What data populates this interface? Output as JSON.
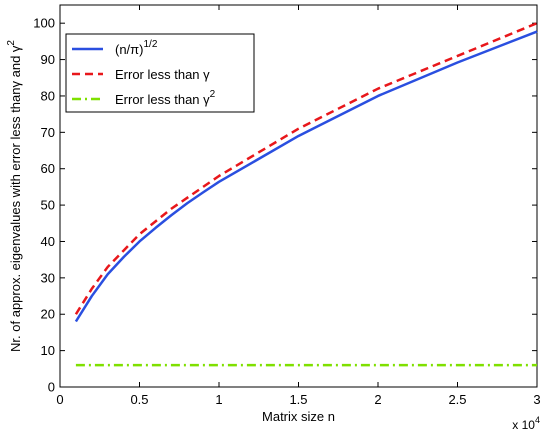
{
  "chart_data": {
    "type": "line",
    "xlabel": "Matrix size n",
    "ylabel": "Nr. of approx. eigenvalues with error less thanγ and γ",
    "ylabel_superscript": "2",
    "x_multiplier_label": "x 10",
    "x_multiplier_exponent": "4",
    "xlim": [
      0,
      30000
    ],
    "ylim": [
      0,
      105
    ],
    "x_ticks": [
      0,
      5000,
      10000,
      15000,
      20000,
      25000,
      30000
    ],
    "x_tick_labels": [
      "0",
      "0.5",
      "1",
      "1.5",
      "2",
      "2.5",
      "3"
    ],
    "y_ticks": [
      0,
      10,
      20,
      30,
      40,
      50,
      60,
      70,
      80,
      90,
      100
    ],
    "y_tick_labels": [
      "0",
      "10",
      "20",
      "30",
      "40",
      "50",
      "60",
      "70",
      "80",
      "90",
      "100"
    ],
    "grid": false,
    "legend_position": "top-left",
    "series": [
      {
        "legend_label": "(n/π)",
        "legend_superscript": "1/2",
        "color": "#2a4fe0",
        "dash": "solid",
        "x": [
          1000,
          2000,
          3000,
          4000,
          5000,
          6000,
          7000,
          8000,
          9000,
          10000,
          15000,
          20000,
          25000,
          30000
        ],
        "y": [
          18,
          25,
          31,
          35.7,
          40,
          43.7,
          47.2,
          50.5,
          53.5,
          56.4,
          69,
          80,
          89.2,
          97.7
        ]
      },
      {
        "legend_label": "Error less than γ",
        "color": "#e8171b",
        "dash": "dashed",
        "x": [
          1000,
          2000,
          3000,
          4000,
          5000,
          6000,
          7000,
          8000,
          9000,
          10000,
          15000,
          20000,
          25000,
          30000
        ],
        "y": [
          20,
          27,
          33,
          37.5,
          42,
          45.5,
          49,
          52,
          55,
          58,
          71,
          82,
          91,
          100
        ]
      },
      {
        "legend_label": "Error less than γ",
        "legend_superscript": "2",
        "color": "#7fe000",
        "dash": "dashdot",
        "x": [
          1000,
          30000
        ],
        "y": [
          6,
          6
        ]
      }
    ]
  }
}
